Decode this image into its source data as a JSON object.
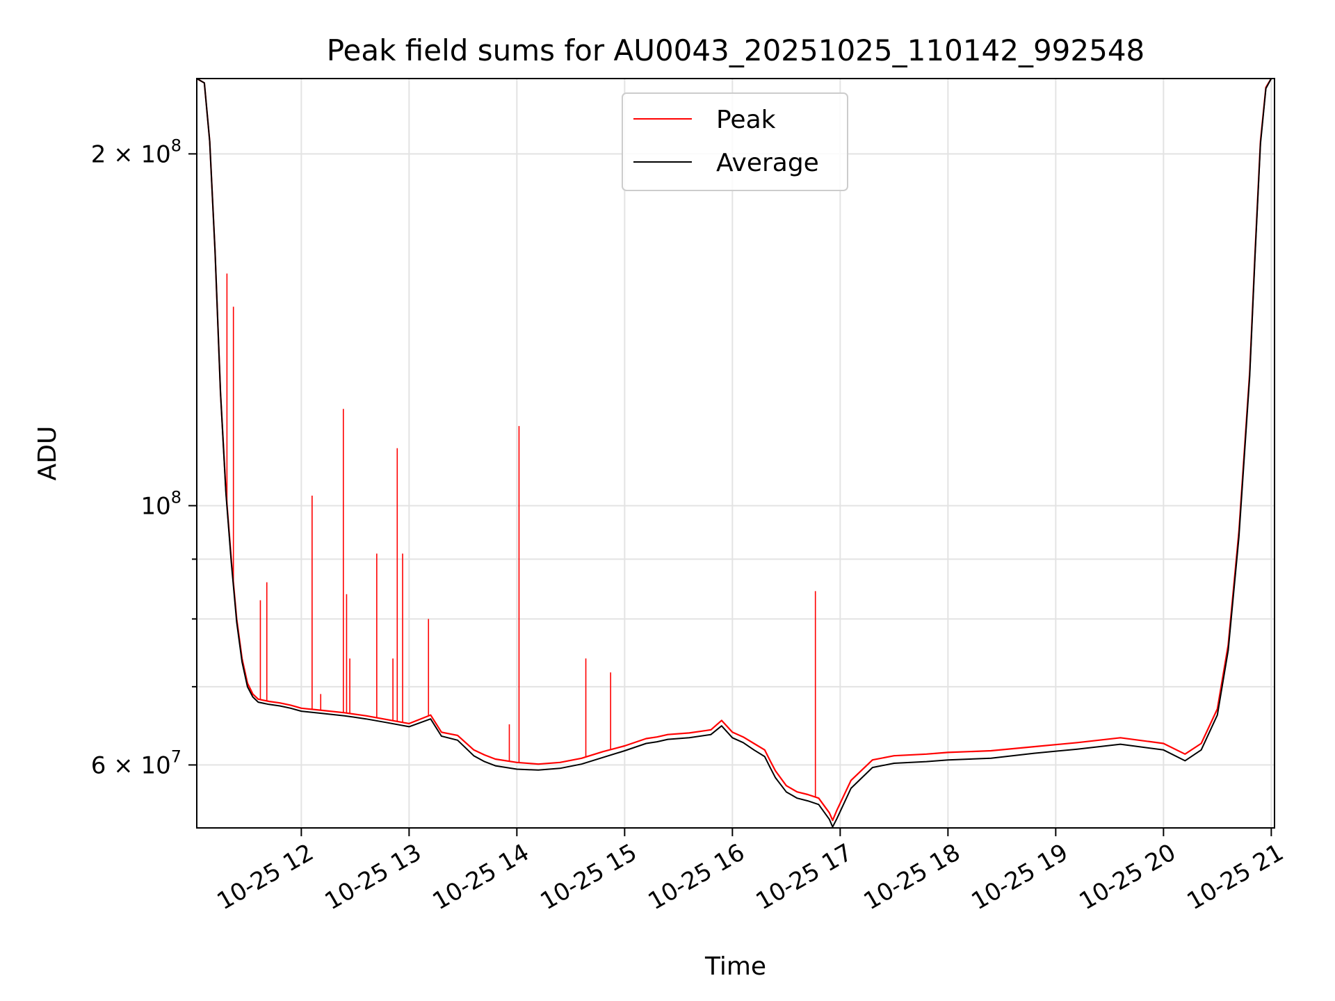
{
  "chart_data": {
    "type": "line",
    "title": "Peak field sums for AU0043_20251025_110142_992548",
    "xlabel": "Time",
    "ylabel": "ADU",
    "y_scale": "log",
    "grid": true,
    "legend_position": "top-center",
    "xlim_hours": [
      11.03,
      21.03
    ],
    "ylim": [
      53000000,
      232000000
    ],
    "x_ticks": [
      {
        "hour": 12,
        "label": "10-25 12"
      },
      {
        "hour": 13,
        "label": "10-25 13"
      },
      {
        "hour": 14,
        "label": "10-25 14"
      },
      {
        "hour": 15,
        "label": "10-25 15"
      },
      {
        "hour": 16,
        "label": "10-25 16"
      },
      {
        "hour": 17,
        "label": "10-25 17"
      },
      {
        "hour": 18,
        "label": "10-25 18"
      },
      {
        "hour": 19,
        "label": "10-25 19"
      },
      {
        "hour": 20,
        "label": "10-25 20"
      },
      {
        "hour": 21,
        "label": "10-25 21"
      }
    ],
    "y_ticks": [
      {
        "value": 60000000,
        "mantissa": "6",
        "exp": "7"
      },
      {
        "value": 100000000,
        "mantissa": "",
        "exp": "8"
      },
      {
        "value": 200000000,
        "mantissa": "2",
        "exp": "8"
      }
    ],
    "y_minor_ticks": [
      70000000,
      80000000,
      90000000
    ],
    "series": [
      {
        "name": "Peak",
        "color": "#ff0000",
        "x": [
          11.03,
          11.1,
          11.15,
          11.2,
          11.25,
          11.3,
          11.35,
          11.4,
          11.45,
          11.5,
          11.55,
          11.6,
          11.7,
          11.8,
          11.9,
          12.0,
          12.2,
          12.4,
          12.6,
          12.8,
          13.0,
          13.2,
          13.3,
          13.45,
          13.6,
          13.7,
          13.8,
          14.0,
          14.2,
          14.4,
          14.6,
          14.8,
          15.0,
          15.2,
          15.3,
          15.4,
          15.6,
          15.8,
          15.9,
          16.0,
          16.1,
          16.2,
          16.3,
          16.35,
          16.4,
          16.5,
          16.6,
          16.7,
          16.8,
          16.9,
          16.93,
          16.97,
          17.1,
          17.3,
          17.5,
          17.8,
          18.0,
          18.4,
          18.8,
          19.2,
          19.6,
          20.0,
          20.2,
          20.35,
          20.5,
          20.6,
          20.7,
          20.8,
          20.85,
          20.9,
          20.95,
          21.0
        ],
        "values": [
          232000000,
          230000000,
          205000000,
          165000000,
          125000000,
          103000000,
          90000000,
          80000000,
          74000000,
          70500000,
          69000000,
          68300000,
          68000000,
          67800000,
          67500000,
          67100000,
          66800000,
          66500000,
          66100000,
          65600000,
          65100000,
          66200000,
          64000000,
          63600000,
          61800000,
          61200000,
          60700000,
          60300000,
          60100000,
          60300000,
          60800000,
          61600000,
          62300000,
          63200000,
          63400000,
          63700000,
          63900000,
          64300000,
          65500000,
          64000000,
          63400000,
          62600000,
          61800000,
          60500000,
          59300000,
          57600000,
          56900000,
          56600000,
          56200000,
          54600000,
          53800000,
          54900000,
          58200000,
          60600000,
          61100000,
          61300000,
          61500000,
          61700000,
          62200000,
          62700000,
          63300000,
          62600000,
          61300000,
          62600000,
          67000000,
          76000000,
          95000000,
          130000000,
          165000000,
          205000000,
          228000000,
          232000000
        ]
      },
      {
        "name": "Average",
        "color": "#000000",
        "x": [
          11.03,
          11.1,
          11.15,
          11.2,
          11.25,
          11.3,
          11.35,
          11.4,
          11.45,
          11.5,
          11.55,
          11.6,
          11.7,
          11.8,
          11.9,
          12.0,
          12.2,
          12.4,
          12.6,
          12.8,
          13.0,
          13.2,
          13.3,
          13.45,
          13.6,
          13.7,
          13.8,
          14.0,
          14.2,
          14.4,
          14.6,
          14.8,
          15.0,
          15.2,
          15.3,
          15.4,
          15.6,
          15.8,
          15.9,
          16.0,
          16.1,
          16.2,
          16.3,
          16.35,
          16.4,
          16.5,
          16.6,
          16.7,
          16.8,
          16.9,
          16.93,
          16.97,
          17.1,
          17.3,
          17.5,
          17.8,
          18.0,
          18.4,
          18.8,
          19.2,
          19.6,
          20.0,
          20.2,
          20.35,
          20.5,
          20.6,
          20.7,
          20.8,
          20.85,
          20.9,
          20.95,
          21.0
        ],
        "values": [
          232000000,
          230000000,
          205000000,
          165000000,
          125000000,
          102500000,
          89500000,
          79500000,
          73500000,
          70000000,
          68600000,
          67900000,
          67600000,
          67400000,
          67100000,
          66700000,
          66400000,
          66100000,
          65700000,
          65200000,
          64700000,
          65700000,
          63500000,
          63000000,
          61100000,
          60400000,
          59900000,
          59500000,
          59400000,
          59600000,
          60100000,
          60900000,
          61700000,
          62600000,
          62800000,
          63100000,
          63300000,
          63700000,
          64800000,
          63300000,
          62700000,
          61800000,
          61000000,
          59700000,
          58500000,
          56900000,
          56200000,
          55900000,
          55500000,
          53900000,
          53100000,
          54000000,
          57300000,
          59700000,
          60200000,
          60400000,
          60600000,
          60800000,
          61400000,
          61900000,
          62500000,
          61800000,
          60500000,
          61800000,
          66200000,
          75200000,
          94000000,
          129000000,
          164000000,
          204000000,
          227500000,
          232000000
        ]
      }
    ],
    "peak_spikes": [
      {
        "hour": 11.31,
        "value": 158000000
      },
      {
        "hour": 11.37,
        "value": 148000000
      },
      {
        "hour": 11.62,
        "value": 83000000
      },
      {
        "hour": 11.68,
        "value": 86000000
      },
      {
        "hour": 12.1,
        "value": 102000000
      },
      {
        "hour": 12.18,
        "value": 69000000
      },
      {
        "hour": 12.39,
        "value": 121000000
      },
      {
        "hour": 12.42,
        "value": 84000000
      },
      {
        "hour": 12.45,
        "value": 74000000
      },
      {
        "hour": 12.7,
        "value": 91000000
      },
      {
        "hour": 12.85,
        "value": 74000000
      },
      {
        "hour": 12.89,
        "value": 112000000
      },
      {
        "hour": 12.94,
        "value": 91000000
      },
      {
        "hour": 13.18,
        "value": 80000000
      },
      {
        "hour": 13.93,
        "value": 65000000
      },
      {
        "hour": 14.02,
        "value": 117000000
      },
      {
        "hour": 14.64,
        "value": 74000000
      },
      {
        "hour": 14.87,
        "value": 72000000
      },
      {
        "hour": 16.77,
        "value": 84500000
      }
    ]
  }
}
